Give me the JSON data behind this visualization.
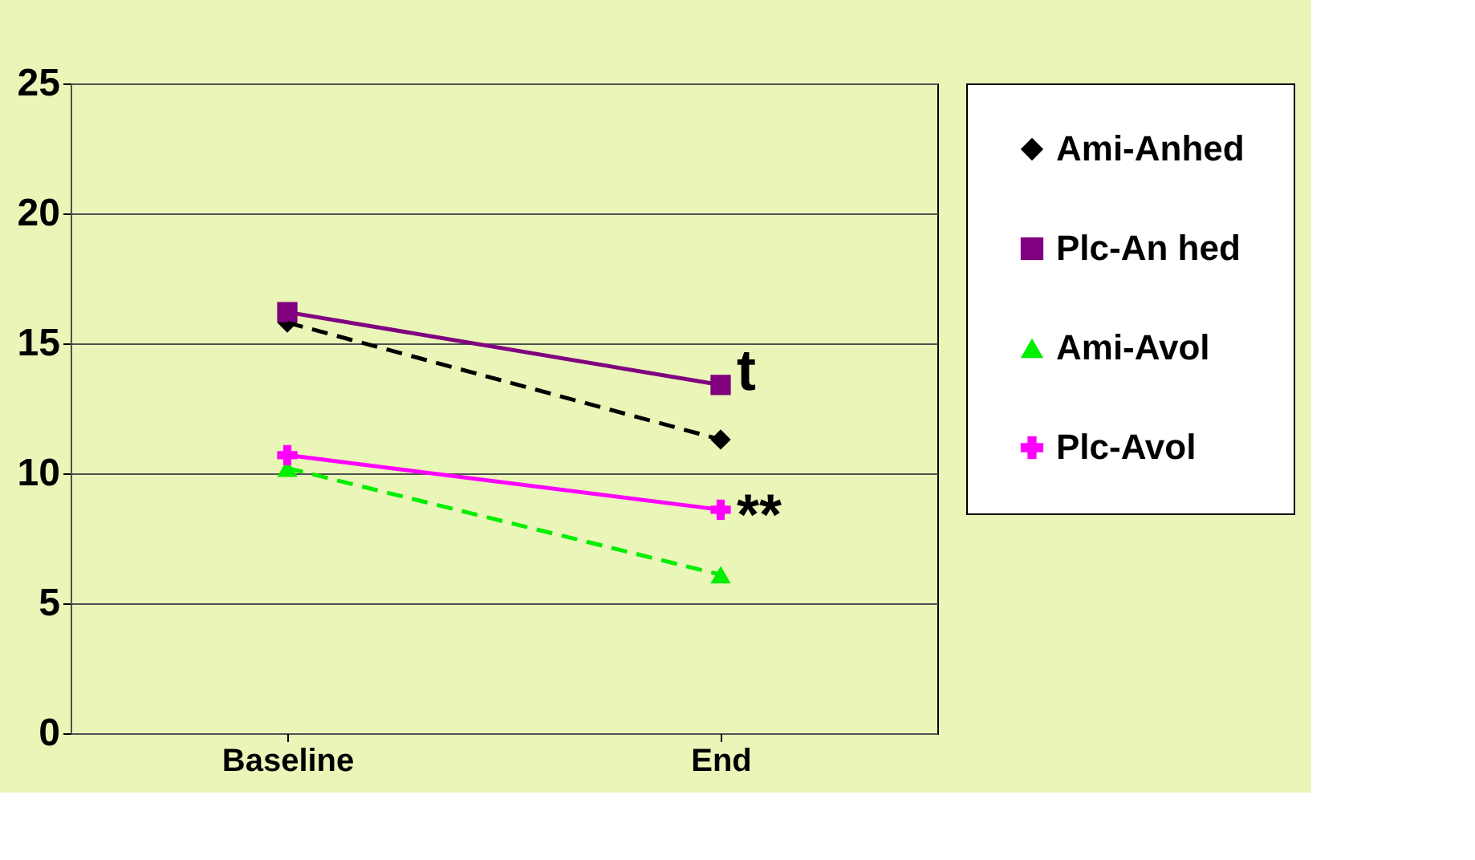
{
  "chart_data": {
    "type": "line",
    "categories": [
      "Baseline",
      "End"
    ],
    "ylim": [
      0,
      25
    ],
    "yticks": [
      0,
      5,
      10,
      15,
      20,
      25
    ],
    "grid": "y",
    "legend": "right",
    "series": [
      {
        "name": "Ami-Anhed",
        "color": "#000000",
        "values": [
          15.8,
          11.3
        ],
        "marker": "diamond",
        "line_style": "dashed"
      },
      {
        "name": "Plc-An hed",
        "color": "#800080",
        "values": [
          16.2,
          13.4
        ],
        "marker": "square",
        "line_style": "solid"
      },
      {
        "name": "Ami-Avol",
        "color": "#00ee00",
        "values": [
          10.2,
          6.1
        ],
        "marker": "triangle",
        "line_style": "dashed"
      },
      {
        "name": "Plc-Avol",
        "color": "#ff00ff",
        "values": [
          10.7,
          8.6
        ],
        "marker": "cross",
        "line_style": "solid"
      }
    ],
    "annotations": [
      "t",
      "**"
    ]
  }
}
